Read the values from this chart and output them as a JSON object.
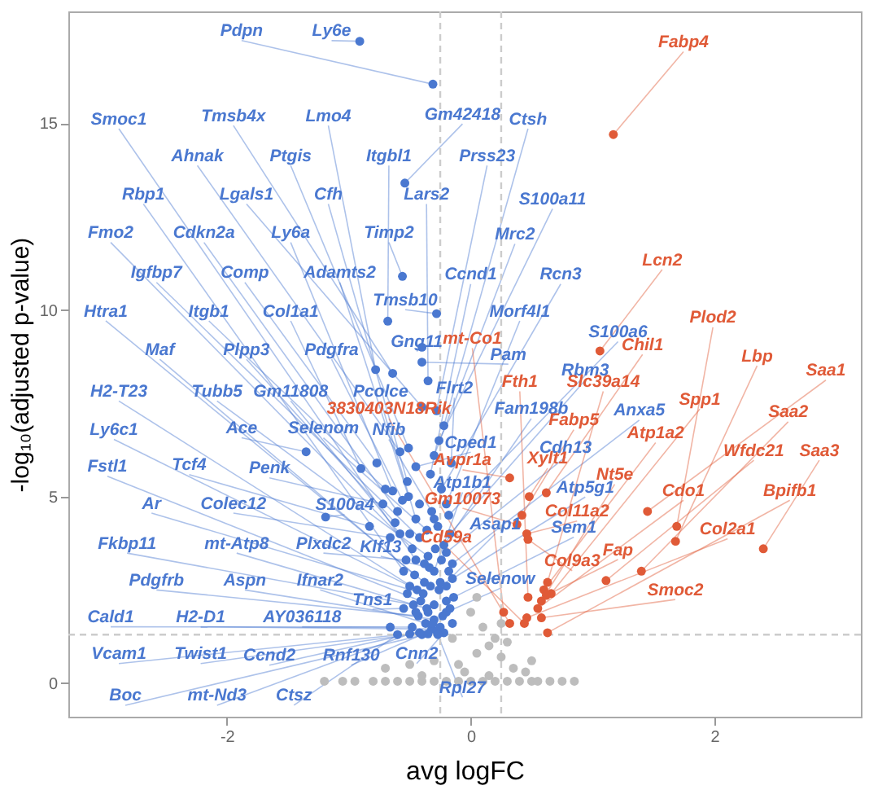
{
  "chart_data": {
    "type": "scatter",
    "xlabel": "avg logFC",
    "ylabel": "-log₁₀(adjusted p-value)",
    "xlim": [
      -3.3,
      3.2
    ],
    "ylim": [
      -0.9,
      18
    ],
    "xticks": [
      -2,
      0,
      2
    ],
    "yticks": [
      0,
      5,
      10,
      15
    ],
    "grid": false,
    "marker": "circle",
    "ref_lines": [
      {
        "axis": "x",
        "value": -0.25,
        "color": "#cccccc",
        "line_style": "dashed"
      },
      {
        "axis": "x",
        "value": 0.25,
        "color": "#cccccc",
        "line_style": "dashed"
      },
      {
        "axis": "y",
        "value": 1.3,
        "color": "#cccccc",
        "line_style": "dashed"
      }
    ],
    "series": [
      {
        "color": "#bdbdbd",
        "x": [
          -1.2,
          -1.05,
          -0.95,
          -0.8,
          -0.7,
          -0.6,
          -0.5,
          -0.4,
          -0.3,
          -0.2,
          -0.1,
          0,
          0.1,
          0.2,
          0.3,
          0.4,
          0.5,
          0.55,
          0.65,
          0.75,
          0.85,
          -0.7,
          -0.5,
          -0.3,
          -0.1,
          0.05,
          0.15,
          0.25,
          0.35,
          0.45,
          -0.15,
          0.1,
          0.2,
          0.3,
          0,
          0.05,
          -0.05,
          0.15,
          0.5,
          -0.4,
          0.25
        ],
        "values": [
          0.05,
          0.05,
          0.05,
          0.05,
          0.05,
          0.05,
          0.05,
          0.05,
          0.05,
          0.05,
          0.05,
          0.05,
          0.05,
          0.05,
          0.05,
          0.05,
          0.05,
          0.05,
          0.05,
          0.05,
          0.05,
          0.4,
          0.5,
          0.6,
          0.5,
          0.8,
          1,
          0.7,
          0.4,
          0.3,
          1.2,
          1.5,
          1.2,
          1.1,
          1.9,
          2.3,
          0.3,
          0.2,
          0.6,
          0.2,
          1.6
        ]
      },
      {
        "color": "#4a78d0",
        "x": [
          -0.31,
          -0.91,
          -0.54,
          -0.45,
          -0.64,
          -0.78,
          -0.22,
          -0.58,
          -0.51,
          -0.68,
          -0.28,
          -0.55,
          -0.4,
          -0.52,
          -0.35,
          -0.26,
          -0.48,
          -0.6,
          -0.64,
          -0.56,
          -0.3,
          -0.42,
          -0.77,
          -0.51,
          -0.33,
          -0.24,
          -0.38,
          -0.7,
          -0.9,
          -0.28,
          -0.2,
          -0.46,
          -0.62,
          -0.56,
          -0.4,
          -0.4,
          -0.18,
          -0.17,
          -0.44,
          -0.35,
          -0.58,
          -0.45,
          -0.16,
          -0.22,
          -0.15,
          -0.5,
          -1.35,
          -0.36,
          -0.32,
          -0.45,
          -0.2,
          -0.41,
          -0.83,
          -0.72,
          -0.3,
          -0.15,
          -0.39,
          -0.66,
          -1.19,
          -0.26,
          -0.14,
          -0.47,
          -0.36,
          -0.53,
          -0.34,
          -0.2,
          -0.43,
          -0.3,
          -0.37,
          -0.55,
          -0.48,
          -0.32,
          -0.66,
          -0.42,
          -0.28,
          -0.25,
          -0.4,
          -0.22,
          -0.35,
          -0.5,
          -0.6,
          -0.27,
          -0.3,
          -0.25,
          -0.2,
          -0.33,
          -0.38,
          -0.29,
          -0.42,
          -0.27,
          -0.18,
          -0.23,
          -0.15,
          -0.45,
          -0.52,
          -0.35,
          -0.2,
          -0.3,
          -0.5,
          -0.24,
          -0.17,
          -0.31
        ],
        "values": [
          16.05,
          17.2,
          13.4,
          3.3,
          8.3,
          8.4,
          6.9,
          6.2,
          6.3,
          9.7,
          7.3,
          3,
          7.4,
          5.4,
          8.1,
          6.5,
          3.6,
          4.6,
          5.15,
          10.9,
          6.1,
          3.9,
          5.9,
          5,
          5.6,
          5.2,
          2.7,
          5.2,
          5.75,
          9.9,
          4.8,
          2.9,
          4.3,
          4.9,
          9,
          8.6,
          4.5,
          4,
          2.5,
          3.4,
          4,
          4.4,
          5.9,
          3.7,
          3.2,
          2.6,
          6.2,
          4.1,
          4.6,
          5.8,
          3.5,
          2.2,
          4.2,
          4.8,
          3,
          2.8,
          2.4,
          3.9,
          4.45,
          2.5,
          2.3,
          2.1,
          2,
          3.3,
          3.1,
          1.9,
          1.8,
          1.7,
          1.6,
          2,
          1.5,
          1.45,
          1.5,
          1.35,
          1.4,
          1.5,
          1.3,
          1.35,
          1.32,
          1.32,
          1.3,
          1.3,
          2.1,
          2.7,
          2.2,
          2.6,
          3.2,
          3.6,
          4.8,
          4.2,
          3,
          1.8,
          1.6,
          1.9,
          2.4,
          1.9,
          2.6,
          4.4,
          4,
          3.3,
          2,
          1.6
        ],
        "value_labels": [
          "Pdpn",
          "Ly6e",
          "Gm42418",
          "Smoc1",
          "Tmsb4x",
          "Lmo4",
          "Ctsh",
          "Ahnak",
          "Ptgis",
          "Itgbl1",
          "Prss23",
          "Rbp1",
          "Lgals1",
          "Cfh",
          "Lars2",
          "S100a11",
          "Fmo2",
          "Cdkn2a",
          "Ly6a",
          "Timp2",
          "Mrc2",
          "Igfbp7",
          "Comp",
          "Adamts2",
          "Ccnd1",
          "Rcn3",
          "Htra1",
          "Itgb1",
          "Col1a1",
          "Tmsb10",
          "Morf4l1",
          "Maf",
          "Plpp3",
          "Pdgfra",
          "Gng11",
          "Pam",
          "S100a6",
          "Rbm3",
          "H2-T23",
          "Tubb5",
          "Gm11808",
          "Pcolce",
          "Flrt2",
          "Fam198b",
          "Anxa5",
          "Ly6c1",
          "Ace",
          "Selenom",
          "Nfib",
          "Cped1",
          "Cdh13",
          "Fstl1",
          "Tcf4",
          "Penk",
          "Atp1b1",
          "Atp5g1",
          "Ar",
          "Colec12",
          "S100a4",
          "Asap1",
          "Sem1",
          "Fkbp11",
          "mt-Atp8",
          "Plxdc2",
          "Klf13",
          "Selenow",
          "Pdgfrb",
          "Aspn",
          "Ifnar2",
          "Tns1",
          "Cald1",
          "H2-D1",
          "AY036118",
          "Vcam1",
          "Twist1",
          "Ccnd2",
          "Rnf130",
          "Cnn2",
          "Boc",
          "mt-Nd3",
          "Ctsz",
          "Rpl27",
          null,
          null,
          null,
          null,
          null,
          null,
          null,
          null,
          null,
          null,
          null,
          null,
          null,
          null,
          null,
          null,
          null,
          null,
          null,
          null
        ]
      },
      {
        "color": "#e05a37",
        "x": [
          1.17,
          1.06,
          0.62,
          1.69,
          1.68,
          1.45,
          0.27,
          0.47,
          0.63,
          0.66,
          1.4,
          2.4,
          0.32,
          0.42,
          0.6,
          0.32,
          0.48,
          1.11,
          0.58,
          0.38,
          0.55,
          0.63,
          0.46,
          0.46,
          0.44,
          0.62,
          0.47,
          0.58
        ],
        "values": [
          14.7,
          8.9,
          5.1,
          4.2,
          3.8,
          4.6,
          1.9,
          2.3,
          2.7,
          2.4,
          3,
          3.6,
          1.6,
          4.5,
          2.5,
          5.5,
          5,
          2.75,
          2.2,
          4.25,
          2,
          1.35,
          4,
          1.75,
          1.6,
          2.35,
          3.85,
          1.75
        ],
        "value_labels": [
          "Fabp4",
          "Lcn2",
          "Chil1",
          "Plod2",
          "Lbp",
          "Saa1",
          "mt-Co1",
          "Fth1",
          "Slc39a14",
          "Spp1",
          "Saa2",
          "Saa3",
          "3830403N18Rik",
          "Fabp5",
          "Atp1a2",
          "Avpr1a",
          "Xylt1",
          "Wfdc21",
          "Nt5e",
          "Gm10073",
          "Cdo1",
          "Bpifb1",
          "Col11a2",
          "Col2a1",
          "Cd59a",
          "Fap",
          "Col9a3",
          "Smoc2"
        ]
      }
    ]
  }
}
